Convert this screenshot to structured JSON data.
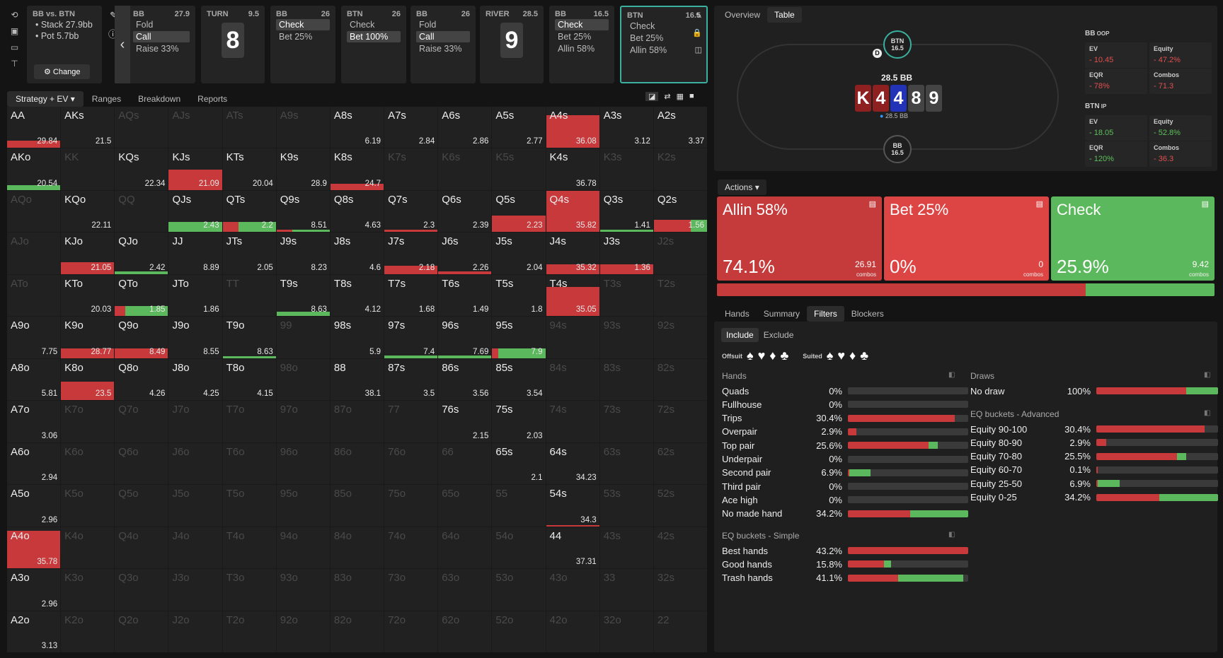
{
  "spots": [
    {
      "hdr": "BB vs. BTN",
      "info": [
        "Stack 27.9bb",
        "Pot 5.7bb"
      ],
      "change": "Change"
    },
    {
      "pos": "BB",
      "val": "27.9",
      "acts": [
        "Fold",
        "Call",
        "Raise 33%"
      ],
      "sel": 1
    },
    {
      "pos": "TURN",
      "val": "9.5",
      "card": "8"
    },
    {
      "pos": "BB",
      "val": "26",
      "acts": [
        "Check",
        "Bet 25%"
      ],
      "sel": 0
    },
    {
      "pos": "BTN",
      "val": "26",
      "acts": [
        "Check",
        "Bet 100%"
      ],
      "sel": 1
    },
    {
      "pos": "BB",
      "val": "26",
      "acts": [
        "Fold",
        "Call",
        "Raise 33%"
      ],
      "sel": 1
    },
    {
      "pos": "RIVER",
      "val": "28.5",
      "card": "9"
    },
    {
      "pos": "BB",
      "val": "16.5",
      "acts": [
        "Check",
        "Bet 25%",
        "Allin 58%"
      ],
      "sel": 0
    },
    {
      "pos": "BTN",
      "val": "16.5",
      "acts": [
        "Check",
        "Bet 25%",
        "Allin 58%"
      ],
      "sel": -1
    }
  ],
  "tabs": [
    "Strategy + EV",
    "Ranges",
    "Breakdown",
    "Reports"
  ],
  "grid": [
    [
      "AA",
      "29.84",
      "AKs",
      "21.5",
      "AQs",
      "",
      "AJs",
      "",
      "ATs",
      "",
      "A9s",
      "",
      "A8s",
      "6.19",
      "A7s",
      "2.84",
      "A6s",
      "2.86",
      "A5s",
      "2.77",
      "A4s",
      "36.08",
      "A3s",
      "3.12",
      "A2s",
      "3.37"
    ],
    [
      "AKo",
      "20.54",
      "KK",
      "",
      "KQs",
      "22.34",
      "KJs",
      "21.09",
      "KTs",
      "20.04",
      "K9s",
      "28.9",
      "K8s",
      "24.7",
      "K7s",
      "",
      "K6s",
      "",
      "K5s",
      "",
      "K4s",
      "36.78",
      "K3s",
      "",
      "K2s",
      ""
    ],
    [
      "AQo",
      "",
      "KQo",
      "22.11",
      "QQ",
      "",
      "QJs",
      "2.43",
      "QTs",
      "2.2",
      "Q9s",
      "8.51",
      "Q8s",
      "4.63",
      "Q7s",
      "2.3",
      "Q6s",
      "2.39",
      "Q5s",
      "2.23",
      "Q4s",
      "35.82",
      "Q3s",
      "1.41",
      "Q2s",
      "1.56"
    ],
    [
      "AJo",
      "",
      "KJo",
      "21.05",
      "QJo",
      "2.42",
      "JJ",
      "8.89",
      "JTs",
      "2.05",
      "J9s",
      "8.23",
      "J8s",
      "4.6",
      "J7s",
      "2.18",
      "J6s",
      "2.26",
      "J5s",
      "2.04",
      "J4s",
      "35.32",
      "J3s",
      "1.36",
      "J2s",
      ""
    ],
    [
      "ATo",
      "",
      "KTo",
      "20.03",
      "QTo",
      "1.85",
      "JTo",
      "1.86",
      "TT",
      "",
      "T9s",
      "8.63",
      "T8s",
      "4.12",
      "T7s",
      "1.68",
      "T6s",
      "1.49",
      "T5s",
      "1.8",
      "T4s",
      "35.05",
      "T3s",
      "",
      "T2s",
      ""
    ],
    [
      "A9o",
      "7.75",
      "K9o",
      "28.77",
      "Q9o",
      "8.49",
      "J9o",
      "8.55",
      "T9o",
      "8.63",
      "99",
      "",
      "98s",
      "5.9",
      "97s",
      "7.4",
      "96s",
      "7.69",
      "95s",
      "7.9",
      "94s",
      "",
      "93s",
      "",
      "92s",
      ""
    ],
    [
      "A8o",
      "5.81",
      "K8o",
      "23.5",
      "Q8o",
      "4.26",
      "J8o",
      "4.25",
      "T8o",
      "4.15",
      "98o",
      "",
      "88",
      "38.1",
      "87s",
      "3.5",
      "86s",
      "3.56",
      "85s",
      "3.54",
      "84s",
      "",
      "83s",
      "",
      "82s",
      ""
    ],
    [
      "A7o",
      "3.06",
      "K7o",
      "",
      "Q7o",
      "",
      "J7o",
      "",
      "T7o",
      "",
      "97o",
      "",
      "87o",
      "",
      "77",
      "",
      "76s",
      "2.15",
      "75s",
      "2.03",
      "74s",
      "",
      "73s",
      "",
      "72s",
      ""
    ],
    [
      "A6o",
      "2.94",
      "K6o",
      "",
      "Q6o",
      "",
      "J6o",
      "",
      "T6o",
      "",
      "96o",
      "",
      "86o",
      "",
      "76o",
      "",
      "66",
      "",
      "65s",
      "2.1",
      "64s",
      "34.23",
      "63s",
      "",
      "62s",
      ""
    ],
    [
      "A5o",
      "2.96",
      "K5o",
      "",
      "Q5o",
      "",
      "J5o",
      "",
      "T5o",
      "",
      "95o",
      "",
      "85o",
      "",
      "75o",
      "",
      "65o",
      "",
      "55",
      "",
      "54s",
      "34.3",
      "53s",
      "",
      "52s",
      ""
    ],
    [
      "A4o",
      "35.78",
      "K4o",
      "",
      "Q4o",
      "",
      "J4o",
      "",
      "T4o",
      "",
      "94o",
      "",
      "84o",
      "",
      "74o",
      "",
      "64o",
      "",
      "54o",
      "",
      "44",
      "37.31",
      "43s",
      "",
      "42s",
      ""
    ],
    [
      "A3o",
      "2.96",
      "K3o",
      "",
      "Q3o",
      "",
      "J3o",
      "",
      "T3o",
      "",
      "93o",
      "",
      "83o",
      "",
      "73o",
      "",
      "63o",
      "",
      "53o",
      "",
      "43o",
      "",
      "33",
      "",
      "32s",
      ""
    ],
    [
      "A2o",
      "3.13",
      "K2o",
      "",
      "Q2o",
      "",
      "J2o",
      "",
      "T2o",
      "",
      "92o",
      "",
      "82o",
      "",
      "72o",
      "",
      "62o",
      "",
      "52o",
      "",
      "42o",
      "",
      "32o",
      "",
      "22",
      ""
    ]
  ],
  "right": {
    "tabs": [
      "Overview",
      "Table"
    ],
    "btn_seat": {
      "name": "BTN",
      "stack": "16.5"
    },
    "bb_seat": {
      "name": "BB",
      "stack": "16.5"
    },
    "pot": "28.5 BB",
    "pot_small": "28.5 BB",
    "dealer": "D",
    "board": [
      "K",
      "4",
      "4",
      "8",
      "9"
    ],
    "oop": {
      "title": "BB",
      "tag": "OOP",
      "ev": "10.45",
      "equity": "47.2%",
      "eqr": "78%",
      "combos": "71.3"
    },
    "ip": {
      "title": "BTN",
      "tag": "IP",
      "ev": "18.05",
      "equity": "52.8%",
      "eqr": "120%",
      "combos": "36.3"
    },
    "labels": {
      "ev": "EV",
      "equity": "Equity",
      "eqr": "EQR",
      "combos": "Combos"
    }
  },
  "actions_label": "Actions",
  "actions": [
    {
      "name": "Allin 58%",
      "pct": "74.1%",
      "combos": "26.91",
      "color": "#c53a3a"
    },
    {
      "name": "Bet 25%",
      "pct": "0%",
      "combos": "0",
      "color": "#dd4444"
    },
    {
      "name": "Check",
      "pct": "25.9%",
      "combos": "9.42",
      "color": "#5cb85c"
    }
  ],
  "combos_word": "combos",
  "btabs": [
    "Hands",
    "Summary",
    "Filters",
    "Blockers"
  ],
  "inc": [
    "Include",
    "Exclude"
  ],
  "offsuit": "Offsuit",
  "suited": "Suited",
  "hands_title": "Hands",
  "hands": [
    {
      "n": "Quads",
      "p": "0%",
      "r": 0,
      "g": 0
    },
    {
      "n": "Fullhouse",
      "p": "0%",
      "r": 0,
      "g": 0
    },
    {
      "n": "Trips",
      "p": "30.4%",
      "r": 0.89,
      "g": 0
    },
    {
      "n": "Overpair",
      "p": "2.9%",
      "r": 0.07,
      "g": 0
    },
    {
      "n": "Top pair",
      "p": "25.6%",
      "r": 0.67,
      "g": 0.08
    },
    {
      "n": "Underpair",
      "p": "0%",
      "r": 0,
      "g": 0
    },
    {
      "n": "Second pair",
      "p": "6.9%",
      "r": 0.01,
      "g": 0.18
    },
    {
      "n": "Third pair",
      "p": "0%",
      "r": 0,
      "g": 0
    },
    {
      "n": "Ace high",
      "p": "0%",
      "r": 0,
      "g": 0
    },
    {
      "n": "No made hand",
      "p": "34.2%",
      "r": 0.52,
      "g": 0.48
    }
  ],
  "eqs_title": "EQ buckets - Simple",
  "eqs": [
    {
      "n": "Best hands",
      "p": "43.2%",
      "r": 1,
      "g": 0
    },
    {
      "n": "Good hands",
      "p": "15.8%",
      "r": 0.3,
      "g": 0.06
    },
    {
      "n": "Trash hands",
      "p": "41.1%",
      "r": 0.42,
      "g": 0.54
    }
  ],
  "draws_title": "Draws",
  "draws": [
    {
      "n": "No draw",
      "p": "100%",
      "r": 0.74,
      "g": 0.26
    }
  ],
  "eqa_title": "EQ buckets - Advanced",
  "eqa": [
    {
      "n": "Equity 90-100",
      "p": "30.4%",
      "r": 0.89,
      "g": 0
    },
    {
      "n": "Equity 80-90",
      "p": "2.9%",
      "r": 0.08,
      "g": 0
    },
    {
      "n": "Equity 70-80",
      "p": "25.5%",
      "r": 0.66,
      "g": 0.08
    },
    {
      "n": "Equity 60-70",
      "p": "0.1%",
      "r": 0.01,
      "g": 0
    },
    {
      "n": "Equity 25-50",
      "p": "6.9%",
      "r": 0.01,
      "g": 0.18
    },
    {
      "n": "Equity 0-25",
      "p": "34.2%",
      "r": 0.52,
      "g": 0.48
    }
  ]
}
